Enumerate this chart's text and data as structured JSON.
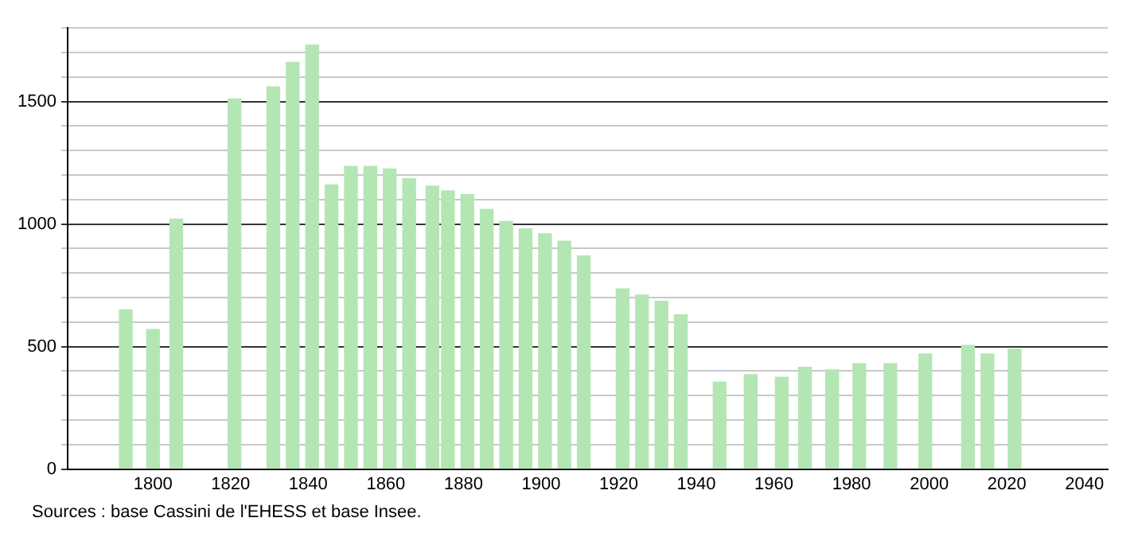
{
  "chart_data": {
    "type": "bar",
    "color": "#b3e6b3",
    "x": [
      1793,
      1800,
      1806,
      1821,
      1831,
      1836,
      1841,
      1846,
      1851,
      1856,
      1861,
      1866,
      1872,
      1876,
      1881,
      1886,
      1891,
      1896,
      1901,
      1906,
      1911,
      1921,
      1926,
      1931,
      1936,
      1946,
      1954,
      1962,
      1968,
      1975,
      1982,
      1990,
      1999,
      2006,
      2007,
      2008,
      2009,
      2010,
      2015,
      2020,
      2021,
      2022
    ],
    "values": [
      650,
      570,
      1020,
      1510,
      1560,
      1660,
      1730,
      1160,
      1235,
      1235,
      1225,
      1185,
      1155,
      1135,
      1120,
      1060,
      1010,
      980,
      960,
      930,
      870,
      735,
      710,
      685,
      630,
      355,
      385,
      375,
      415,
      405,
      430,
      430,
      470,
      null,
      null,
      null,
      null,
      505,
      470,
      null,
      null,
      490
    ],
    "xlim": [
      1778,
      2046
    ],
    "xticks": [
      1800,
      1820,
      1840,
      1860,
      1880,
      1900,
      1920,
      1940,
      1960,
      1980,
      2000,
      2020,
      2040
    ],
    "ylim": [
      0,
      1800
    ],
    "yticks": [
      0,
      {
        "value": 100,
        "label": null
      },
      {
        "value": 200,
        "label": null
      },
      {
        "value": 300,
        "label": null
      },
      {
        "value": 400,
        "label": null
      },
      500,
      {
        "value": 600,
        "label": null
      },
      {
        "value": 700,
        "label": null
      },
      {
        "value": 800,
        "label": null
      },
      {
        "value": 900,
        "label": null
      },
      1000,
      {
        "value": 1100,
        "label": null
      },
      {
        "value": 1200,
        "label": null
      },
      {
        "value": 1300,
        "label": null
      },
      {
        "value": 1400,
        "label": null
      },
      1500,
      {
        "value": 1600,
        "label": null
      },
      {
        "value": 1700,
        "label": null
      },
      {
        "value": 1800,
        "label": null
      }
    ],
    "grid": "y",
    "annotations": [
      "Sources : base Cassini de l'EHESS et base Insee."
    ]
  }
}
